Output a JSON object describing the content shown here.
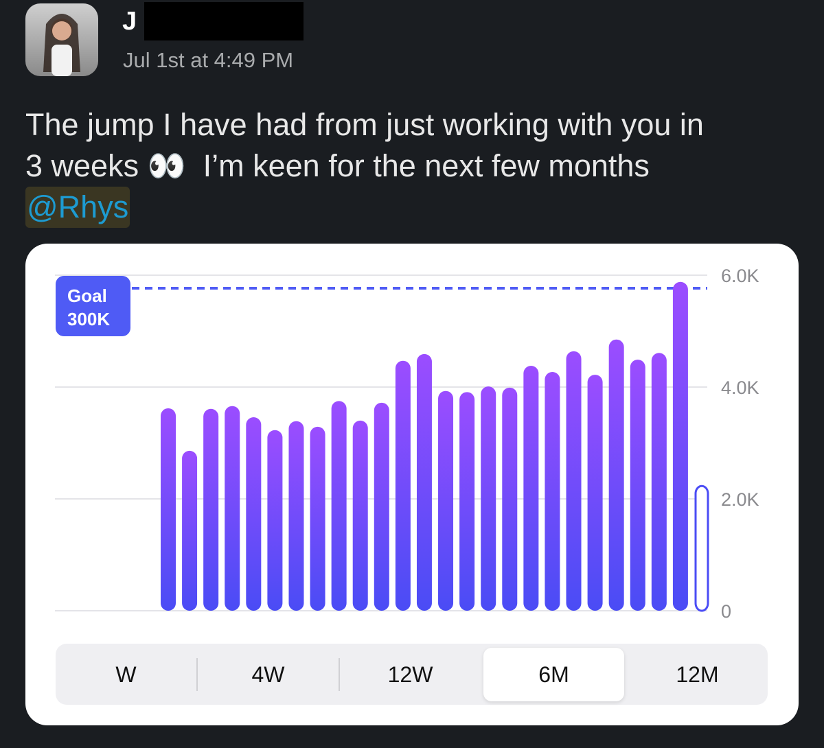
{
  "message": {
    "author_visible": "J",
    "timestamp": "Jul 1st at 4:49 PM",
    "text_line1": "The jump I have had from just working with you in",
    "text_line2_a": "3 weeks ",
    "emoji": "👀",
    "text_line2_b": "  I’m keen for the next few months",
    "mention": "@Rhys"
  },
  "chart": {
    "goal_label": "Goal",
    "goal_value": "300K",
    "segments": [
      {
        "label": "W",
        "selected": false
      },
      {
        "label": "4W",
        "selected": false
      },
      {
        "label": "12W",
        "selected": false
      },
      {
        "label": "6M",
        "selected": true
      },
      {
        "label": "12M",
        "selected": false
      }
    ]
  },
  "chart_data": {
    "type": "bar",
    "yticks": [
      "0",
      "2.0K",
      "4.0K",
      "6.0K"
    ],
    "ylim": [
      0,
      6000
    ],
    "goal_line": 5800,
    "values": [
      3620,
      2860,
      3610,
      3660,
      3460,
      3230,
      3390,
      3290,
      3750,
      3400,
      3720,
      4470,
      4590,
      3930,
      3910,
      4010,
      3990,
      4380,
      4270,
      4640,
      4220,
      4850,
      4490,
      4610,
      5880,
      2230
    ],
    "current_period_outlined": true,
    "colors": {
      "bar_top": "#9b4dff",
      "bar_bottom": "#4a4cf5",
      "goal": "#4f5bf5"
    },
    "grid": true
  }
}
